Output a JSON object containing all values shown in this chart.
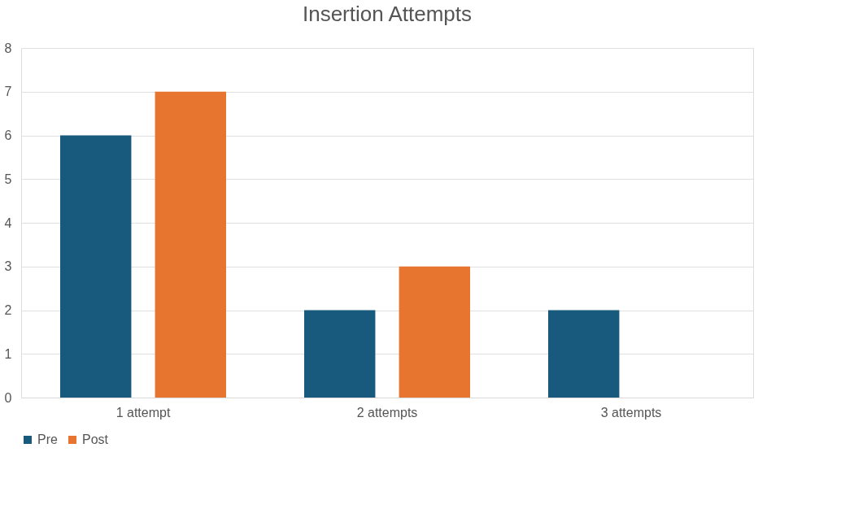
{
  "chart_data": {
    "type": "bar",
    "title": "Insertion Attempts",
    "categories": [
      "1 attempt",
      "2 attempts",
      "3 attempts"
    ],
    "series": [
      {
        "name": "Pre",
        "color": "#185a7d",
        "values": [
          6,
          2,
          2
        ]
      },
      {
        "name": "Post",
        "color": "#e8752f",
        "values": [
          7,
          3,
          0
        ]
      }
    ],
    "ylim": [
      0,
      8
    ],
    "yticks": [
      0,
      1,
      2,
      3,
      4,
      5,
      6,
      7,
      8
    ],
    "grid": "y",
    "legend": "bottom"
  }
}
